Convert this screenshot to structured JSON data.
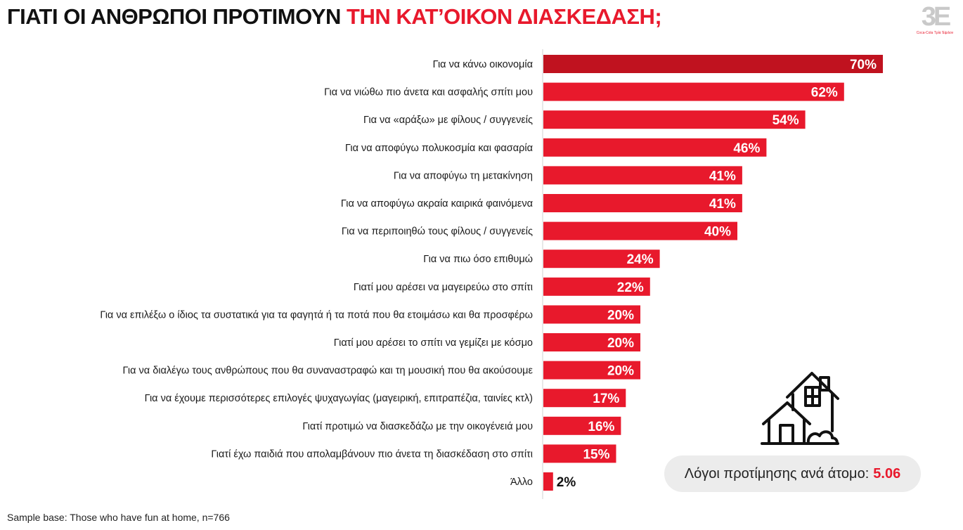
{
  "title": {
    "part1": "ΓΙΑΤΙ ΟΙ ΑΝΘΡΩΠΟΙ ΠΡΟΤΙΜΟΥΝ",
    "part2": "ΤΗΝ ΚΑΤ’ΟΙΚΟΝ ΔΙΑΣΚΕΔΑΣΗ;"
  },
  "logo": {
    "mark": "3E",
    "subtitle": "Coca-Cola Τρία Έψιλον"
  },
  "footnote": "Sample base: Those who have fun at home, n=766",
  "summary": {
    "label": "Λόγοι προτίμησης ανά άτομο:",
    "value": "5.06"
  },
  "colors": {
    "highlight": "#c0121f",
    "bar": "#e8192c",
    "title_accent": "#e8192c"
  },
  "icons": {
    "house": "house-icon"
  },
  "chart_data": {
    "type": "bar",
    "orientation": "horizontal",
    "unit": "%",
    "categories": [
      "Για να κάνω οικονομία",
      "Για να νιώθω πιο άνετα και ασφαλής σπίτι μου",
      "Για να «αράξω» με φίλους / συγγενείς",
      "Για να αποφύγω πολυκοσμία και φασαρία",
      "Για να αποφύγω τη μετακίνηση",
      "Για να αποφύγω ακραία καιρικά φαινόμενα",
      "Για να περιποιηθώ τους φίλους / συγγενείς",
      "Για να πιω όσο επιθυμώ",
      "Γιατί μου αρέσει να μαγειρεύω στο σπίτι",
      "Για να επιλέξω ο ίδιος τα συστατικά για τα φαγητά ή τα ποτά που θα ετοιμάσω και θα προσφέρω",
      "Γιατί μου αρέσει το σπίτι να γεμίζει με κόσμο",
      "Για να διαλέγω τους ανθρώπους που θα συναναστραφώ και τη μουσική που θα ακούσουμε",
      "Για να έχουμε περισσότερες επιλογές ψυχαγωγίας (μαγειρική, επιτραπέζια, ταινίες κτλ)",
      "Γιατί προτιμώ να διασκεδάζω με την οικογένειά μου",
      "Γιατί έχω παιδιά που απολαμβάνουν πιο άνετα τη διασκέδαση στο σπίτι",
      "Άλλο"
    ],
    "values": [
      70,
      62,
      54,
      46,
      41,
      41,
      40,
      24,
      22,
      20,
      20,
      20,
      17,
      16,
      15,
      2
    ],
    "labels": [
      "70%",
      "62%",
      "54%",
      "46%",
      "41%",
      "41%",
      "40%",
      "24%",
      "22%",
      "20%",
      "20%",
      "20%",
      "17%",
      "16%",
      "15%",
      "2%"
    ],
    "highlight_index": 0,
    "xlim": [
      0,
      72
    ],
    "grid": false,
    "legend": "none"
  }
}
